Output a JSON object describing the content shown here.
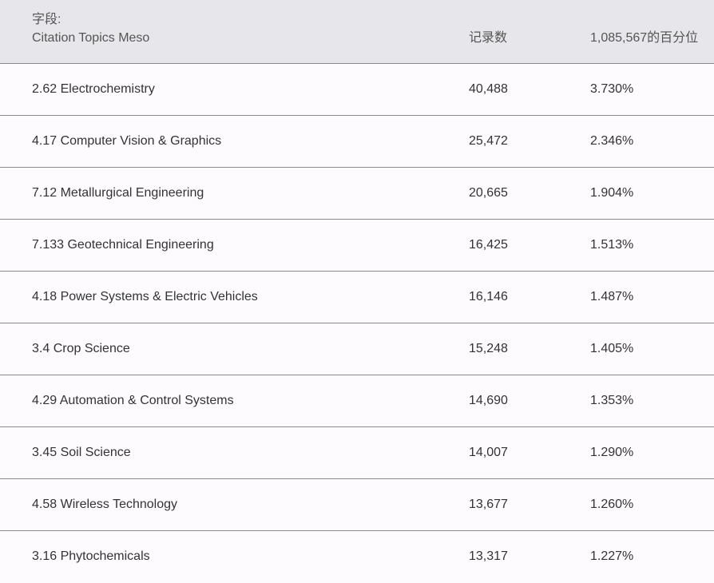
{
  "header": {
    "field_label": "字段:",
    "field_name": "Citation Topics Meso",
    "records_label": "记录数",
    "percent_label": "1,085,567的百分位"
  },
  "rows": [
    {
      "field": "2.62 Electrochemistry",
      "records": "40,488",
      "percent": "3.730%"
    },
    {
      "field": "4.17 Computer Vision & Graphics",
      "records": "25,472",
      "percent": "2.346%"
    },
    {
      "field": "7.12 Metallurgical Engineering",
      "records": "20,665",
      "percent": "1.904%"
    },
    {
      "field": "7.133 Geotechnical Engineering",
      "records": "16,425",
      "percent": "1.513%"
    },
    {
      "field": "4.18 Power Systems & Electric Vehicles",
      "records": "16,146",
      "percent": "1.487%"
    },
    {
      "field": "3.4 Crop Science",
      "records": "15,248",
      "percent": "1.405%"
    },
    {
      "field": "4.29 Automation & Control Systems",
      "records": "14,690",
      "percent": "1.353%"
    },
    {
      "field": "3.45 Soil Science",
      "records": "14,007",
      "percent": "1.290%"
    },
    {
      "field": "4.58 Wireless Technology",
      "records": "13,677",
      "percent": "1.260%"
    },
    {
      "field": "3.16 Phytochemicals",
      "records": "13,317",
      "percent": "1.227%"
    }
  ]
}
